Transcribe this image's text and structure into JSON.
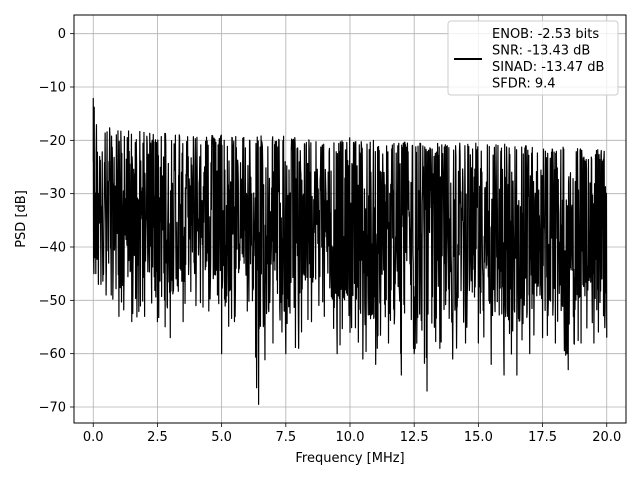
{
  "chart_data": {
    "type": "line",
    "xlabel": "Frequency [MHz]",
    "ylabel": "PSD [dB]",
    "xlim": [
      -0.75,
      20.75
    ],
    "ylim": [
      -73,
      3.5
    ],
    "xticks": [
      0.0,
      2.5,
      5.0,
      7.5,
      10.0,
      12.5,
      15.0,
      17.5,
      20.0
    ],
    "xtick_labels": [
      "0.0",
      "2.5",
      "5.0",
      "7.5",
      "10.0",
      "12.5",
      "15.0",
      "17.5",
      "20.0"
    ],
    "yticks": [
      0,
      -10,
      -20,
      -30,
      -40,
      -50,
      -60,
      -70
    ],
    "ytick_labels": [
      "0",
      "−10",
      "−20",
      "−30",
      "−40",
      "−50",
      "−60",
      "−70"
    ],
    "grid": true,
    "legend_position": "top-right",
    "legend_entries": [
      "ENOB: -2.53 bits",
      "SNR: -13.43 dB",
      "SINAD: -13.47 dB",
      "SFDR: 9.4"
    ],
    "series": [
      {
        "color": "#000000",
        "x": [
          0.0,
          0.0125,
          0.025,
          0.05,
          0.1,
          0.2,
          0.3,
          0.5,
          0.7,
          1.0,
          1.5,
          2.0,
          2.5,
          3.0,
          3.5,
          4.0,
          4.5,
          5.0,
          5.5,
          6.0,
          6.44,
          7.0,
          7.5,
          8.0,
          8.5,
          9.0,
          9.5,
          10.0,
          10.5,
          11.0,
          11.5,
          12.0,
          12.5,
          13.0,
          13.5,
          14.0,
          14.5,
          15.0,
          15.5,
          16.0,
          16.5,
          17.0,
          17.5,
          18.0,
          18.5,
          19.0,
          19.5,
          20.0
        ],
        "upper": [
          0.0,
          -12,
          -15,
          -17,
          -18,
          -19,
          -20,
          -20,
          -20,
          -20.5,
          -20.5,
          -21,
          -20.5,
          -21,
          -21,
          -21,
          -21.5,
          -21,
          -21.5,
          -21.5,
          -21.5,
          -21.5,
          -21.5,
          -22,
          -22,
          -22,
          -22.5,
          -22,
          -22.5,
          -22.5,
          -23,
          -22.5,
          -22.5,
          -23,
          -23,
          -23,
          -23,
          -23,
          -23,
          -23,
          -23,
          -23.5,
          -23.5,
          -23.5,
          -23.5,
          -24,
          -24,
          -24.5
        ],
        "lower": [
          -24,
          -42,
          -45,
          -42,
          -45,
          -47,
          -47,
          -49,
          -49,
          -53,
          -54,
          -53,
          -54,
          -57,
          -54,
          -51,
          -52,
          -60,
          -54,
          -52,
          -69.5,
          -58,
          -60,
          -59,
          -54,
          -53,
          -60,
          -56,
          -61,
          -62,
          -58,
          -64,
          -60,
          -67,
          -59,
          -61,
          -58,
          -58,
          -62,
          -64,
          -64,
          -60,
          -57,
          -58,
          -63,
          -58,
          -58,
          -57
        ]
      }
    ]
  }
}
